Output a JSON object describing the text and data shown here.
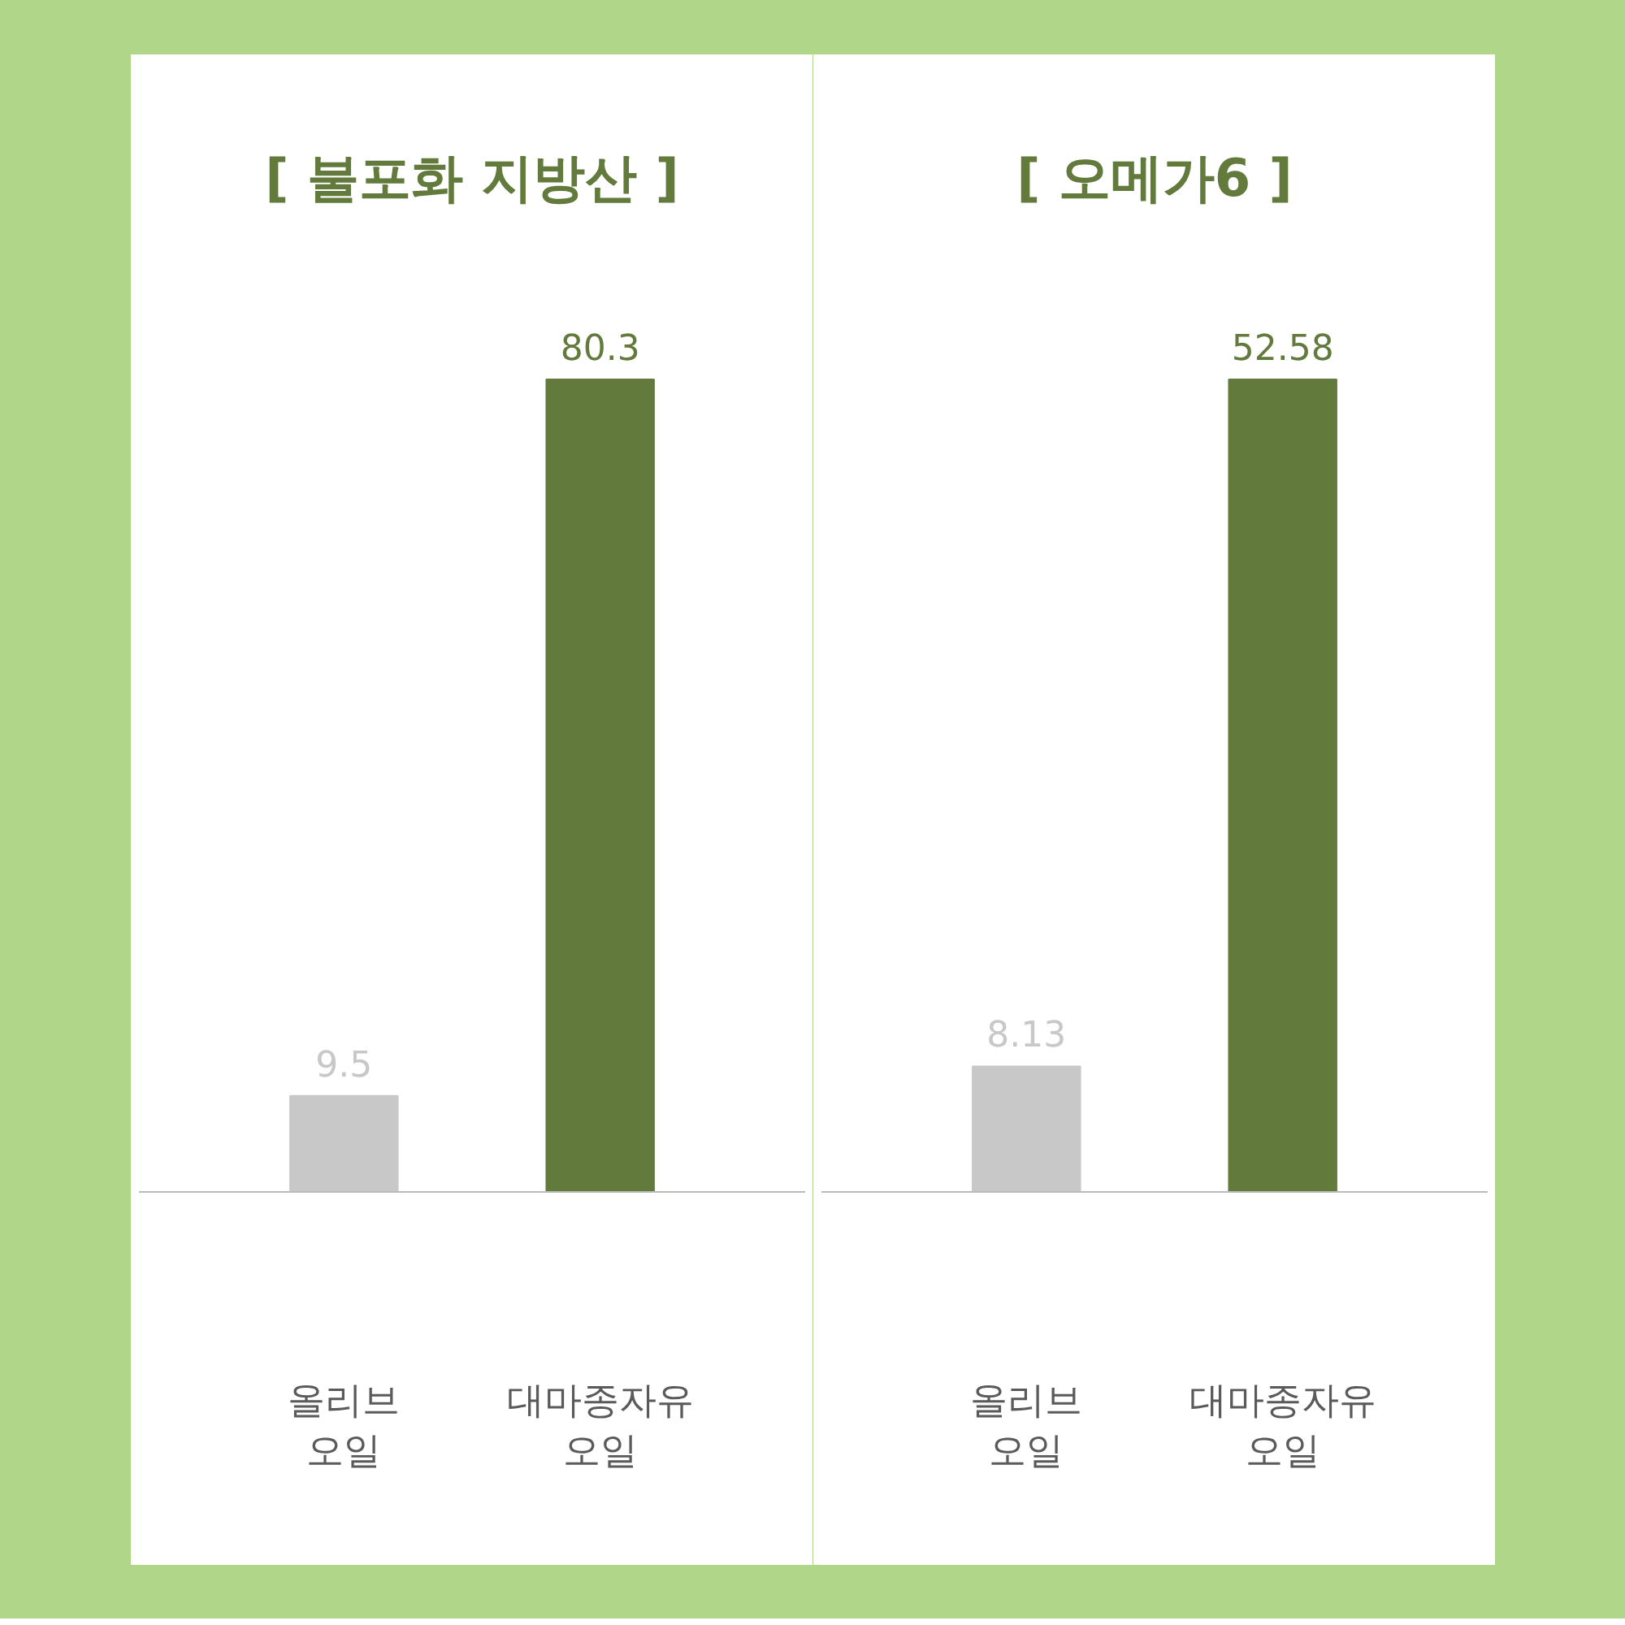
{
  "chart_data": [
    {
      "type": "bar",
      "title": "[ 불포화 지방산 ]",
      "categories": [
        "올리브\n오일",
        "대마종자유\n오일"
      ],
      "values": [
        9.5,
        80.3
      ],
      "colors": [
        "#c8c8c8",
        "#627a3c"
      ],
      "data_labels": true
    },
    {
      "type": "bar",
      "title": "[ 오메가6 ]",
      "categories": [
        "올리브\n오일",
        "대마종자유\n오일"
      ],
      "values": [
        8.13,
        52.58
      ],
      "colors": [
        "#c8c8c8",
        "#627a3c"
      ],
      "data_labels": true
    }
  ]
}
